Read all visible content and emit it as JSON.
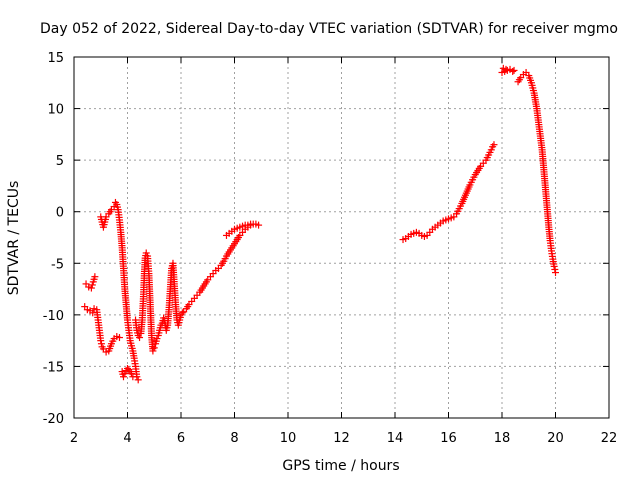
{
  "chart_data": {
    "type": "scatter",
    "title": "Day 052 of 2022, Sidereal Day-to-day VTEC variation (SDTVAR) for receiver mgmo",
    "xlabel": "GPS time / hours",
    "ylabel": "SDTVAR / TECUs",
    "xlim": [
      2,
      22
    ],
    "ylim": [
      -20,
      15
    ],
    "xticks": [
      2,
      4,
      6,
      8,
      10,
      12,
      14,
      16,
      18,
      20,
      22
    ],
    "yticks": [
      -20,
      -15,
      -10,
      -5,
      0,
      5,
      10,
      15
    ],
    "xtick_labels": [
      "2",
      "4",
      "6",
      "8",
      "10",
      "12",
      "14",
      "16",
      "18",
      "20",
      "22"
    ],
    "ytick_labels": [
      "-20",
      "-15",
      "-10",
      "-5",
      "0",
      "5",
      "10",
      "15"
    ],
    "grid": true,
    "marker": "plus",
    "color": "#ff0000",
    "series": [
      {
        "name": "SDTVAR",
        "segments": [
          [
            [
              2.4,
              -9.2
            ],
            [
              2.5,
              -9.5
            ],
            [
              2.6,
              -9.6
            ],
            [
              2.7,
              -9.8
            ],
            [
              2.75,
              -9.4
            ]
          ],
          [
            [
              2.45,
              -7.0
            ],
            [
              2.55,
              -7.3
            ],
            [
              2.65,
              -7.4
            ],
            [
              2.72,
              -6.8
            ],
            [
              2.78,
              -6.3
            ]
          ],
          [
            [
              2.85,
              -9.5
            ],
            [
              2.9,
              -10.5
            ],
            [
              2.95,
              -11.5
            ],
            [
              3.0,
              -12.5
            ],
            [
              3.05,
              -13.1
            ],
            [
              3.1,
              -13.3
            ],
            [
              3.2,
              -13.6
            ],
            [
              3.3,
              -13.5
            ],
            [
              3.4,
              -12.8
            ],
            [
              3.5,
              -12.3
            ],
            [
              3.6,
              -12.1
            ],
            [
              3.7,
              -12.2
            ]
          ],
          [
            [
              3.0,
              -0.5
            ],
            [
              3.05,
              -1.0
            ],
            [
              3.1,
              -1.5
            ],
            [
              3.15,
              -1.0
            ],
            [
              3.2,
              -0.5
            ],
            [
              3.3,
              -0.2
            ],
            [
              3.4,
              0.2
            ],
            [
              3.5,
              0.5
            ],
            [
              3.55,
              0.9
            ],
            [
              3.6,
              0.7
            ],
            [
              3.65,
              0.2
            ],
            [
              3.7,
              -0.8
            ],
            [
              3.75,
              -2.0
            ],
            [
              3.8,
              -3.5
            ],
            [
              3.85,
              -5.5
            ],
            [
              3.9,
              -7.5
            ],
            [
              3.95,
              -9.0
            ],
            [
              4.0,
              -10.5
            ],
            [
              4.05,
              -11.5
            ],
            [
              4.1,
              -12.5
            ],
            [
              4.15,
              -13.0
            ],
            [
              4.2,
              -13.5
            ],
            [
              4.25,
              -14.2
            ],
            [
              4.3,
              -15.0
            ],
            [
              4.35,
              -16.0
            ],
            [
              4.4,
              -16.3
            ]
          ],
          [
            [
              3.8,
              -15.5
            ],
            [
              3.85,
              -16.0
            ],
            [
              3.9,
              -15.7
            ],
            [
              3.95,
              -15.4
            ],
            [
              4.0,
              -15.2
            ],
            [
              4.05,
              -15.3
            ],
            [
              4.1,
              -15.5
            ],
            [
              4.15,
              -15.7
            ],
            [
              4.2,
              -16.0
            ]
          ],
          [
            [
              4.3,
              -10.5
            ],
            [
              4.35,
              -11.5
            ],
            [
              4.4,
              -12.0
            ],
            [
              4.45,
              -12.2
            ],
            [
              4.5,
              -11.8
            ],
            [
              4.55,
              -10.5
            ],
            [
              4.6,
              -8.0
            ],
            [
              4.63,
              -6.0
            ],
            [
              4.66,
              -4.5
            ],
            [
              4.7,
              -4.0
            ],
            [
              4.75,
              -4.3
            ],
            [
              4.8,
              -6.0
            ],
            [
              4.85,
              -9.0
            ],
            [
              4.9,
              -12.0
            ],
            [
              4.95,
              -13.5
            ],
            [
              5.0,
              -13.2
            ],
            [
              5.05,
              -12.8
            ],
            [
              5.1,
              -12.3
            ],
            [
              5.15,
              -12.0
            ],
            [
              5.2,
              -11.5
            ],
            [
              5.25,
              -11.0
            ],
            [
              5.3,
              -10.8
            ],
            [
              5.35,
              -10.3
            ],
            [
              5.4,
              -10.8
            ],
            [
              5.45,
              -11.5
            ],
            [
              5.5,
              -11.0
            ],
            [
              5.55,
              -9.5
            ],
            [
              5.6,
              -7.5
            ],
            [
              5.65,
              -5.5
            ],
            [
              5.7,
              -5.0
            ],
            [
              5.75,
              -7.0
            ],
            [
              5.8,
              -9.0
            ],
            [
              5.85,
              -10.5
            ],
            [
              5.9,
              -11.0
            ],
            [
              5.95,
              -10.5
            ],
            [
              6.0,
              -10.0
            ],
            [
              6.05,
              -9.8
            ],
            [
              6.1,
              -9.7
            ],
            [
              6.2,
              -9.4
            ],
            [
              6.3,
              -9.0
            ],
            [
              6.4,
              -8.7
            ],
            [
              6.5,
              -8.4
            ],
            [
              6.6,
              -8.1
            ],
            [
              6.7,
              -7.8
            ],
            [
              6.8,
              -7.4
            ],
            [
              6.9,
              -7.0
            ],
            [
              7.0,
              -6.6
            ],
            [
              7.1,
              -6.3
            ],
            [
              7.2,
              -6.0
            ],
            [
              7.3,
              -5.7
            ],
            [
              7.4,
              -5.5
            ],
            [
              7.5,
              -5.2
            ],
            [
              7.6,
              -4.8
            ],
            [
              7.7,
              -4.3
            ],
            [
              7.8,
              -3.9
            ],
            [
              7.9,
              -3.5
            ],
            [
              8.0,
              -3.1
            ],
            [
              8.1,
              -2.7
            ],
            [
              8.2,
              -2.3
            ],
            [
              8.3,
              -2.0
            ],
            [
              8.4,
              -1.7
            ],
            [
              8.5,
              -1.5
            ],
            [
              8.6,
              -1.3
            ],
            [
              8.7,
              -1.2
            ],
            [
              8.8,
              -1.2
            ],
            [
              8.9,
              -1.3
            ]
          ],
          [
            [
              7.7,
              -2.3
            ],
            [
              7.8,
              -2.1
            ],
            [
              7.9,
              -1.9
            ],
            [
              8.0,
              -1.7
            ],
            [
              8.1,
              -1.6
            ],
            [
              8.2,
              -1.5
            ],
            [
              8.3,
              -1.4
            ],
            [
              8.4,
              -1.3
            ],
            [
              8.5,
              -1.3
            ],
            [
              8.6,
              -1.2
            ]
          ],
          [
            [
              14.3,
              -2.7
            ],
            [
              14.4,
              -2.6
            ],
            [
              14.5,
              -2.4
            ],
            [
              14.6,
              -2.2
            ],
            [
              14.7,
              -2.1
            ],
            [
              14.8,
              -2.0
            ],
            [
              14.9,
              -2.1
            ],
            [
              15.0,
              -2.3
            ],
            [
              15.1,
              -2.4
            ],
            [
              15.2,
              -2.3
            ],
            [
              15.3,
              -2.0
            ],
            [
              15.4,
              -1.7
            ],
            [
              15.5,
              -1.5
            ],
            [
              15.6,
              -1.3
            ],
            [
              15.7,
              -1.1
            ],
            [
              15.8,
              -0.9
            ],
            [
              15.9,
              -0.8
            ],
            [
              16.0,
              -0.7
            ],
            [
              16.1,
              -0.6
            ],
            [
              16.2,
              -0.5
            ],
            [
              16.3,
              -0.2
            ],
            [
              16.4,
              0.3
            ],
            [
              16.5,
              0.8
            ],
            [
              16.6,
              1.4
            ],
            [
              16.7,
              2.0
            ],
            [
              16.8,
              2.6
            ],
            [
              16.9,
              3.1
            ],
            [
              17.0,
              3.6
            ],
            [
              17.1,
              4.0
            ],
            [
              17.2,
              4.4
            ],
            [
              17.3,
              4.7
            ],
            [
              17.4,
              5.0
            ],
            [
              17.5,
              5.5
            ],
            [
              17.6,
              6.0
            ],
            [
              17.65,
              6.3
            ],
            [
              17.7,
              6.5
            ]
          ],
          [
            [
              18.0,
              13.5
            ],
            [
              18.05,
              13.9
            ],
            [
              18.1,
              13.6
            ],
            [
              18.15,
              13.8
            ],
            [
              18.2,
              13.7
            ],
            [
              18.3,
              13.8
            ],
            [
              18.4,
              13.6
            ],
            [
              18.45,
              13.7
            ]
          ],
          [
            [
              18.6,
              12.6
            ],
            [
              18.7,
              13.0
            ],
            [
              18.8,
              13.3
            ],
            [
              18.9,
              13.5
            ],
            [
              19.0,
              13.2
            ],
            [
              19.1,
              12.5
            ],
            [
              19.2,
              11.5
            ],
            [
              19.3,
              10.0
            ],
            [
              19.4,
              8.0
            ],
            [
              19.5,
              6.0
            ],
            [
              19.55,
              4.5
            ],
            [
              19.6,
              3.0
            ],
            [
              19.65,
              1.5
            ],
            [
              19.7,
              0.0
            ],
            [
              19.75,
              -1.5
            ],
            [
              19.8,
              -2.8
            ],
            [
              19.85,
              -3.8
            ],
            [
              19.9,
              -4.6
            ],
            [
              19.95,
              -5.3
            ],
            [
              20.0,
              -5.9
            ]
          ]
        ]
      }
    ]
  }
}
